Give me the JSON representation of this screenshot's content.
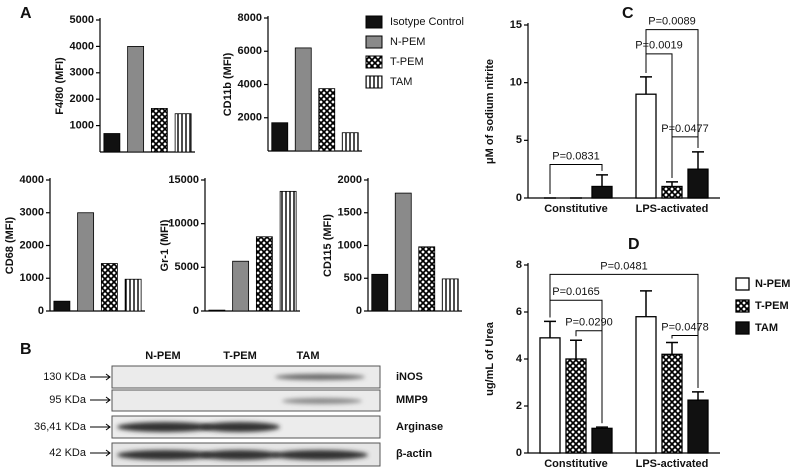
{
  "figure": {
    "blot": {
      "panel": "B",
      "lanes": [
        "N-PEM",
        "T-PEM",
        "TAM"
      ],
      "rows": [
        {
          "size": "130 KDa",
          "protein": "iNOS"
        },
        {
          "size": "95 KDa",
          "protein": "MMP9"
        },
        {
          "size": "36,41 KDa",
          "protein": "Arginase"
        },
        {
          "size": "42 KDa",
          "protein": "β-actin"
        }
      ]
    }
  },
  "chart_data": [
    {
      "type": "bar",
      "panel": "A",
      "ylabel": "F4/80 (MFI)",
      "values": [
        700,
        4000,
        1650,
        1450
      ],
      "ylim": [
        0,
        5000
      ],
      "yticks": [
        1000,
        2000,
        3000,
        4000,
        5000
      ],
      "categories": [
        "Isotype Control",
        "N-PEM",
        "T-PEM",
        "TAM"
      ],
      "fills": [
        "black",
        "gray",
        "crosshatch",
        "stripes"
      ]
    },
    {
      "type": "bar",
      "ylabel": "CD11b (MFI)",
      "values": [
        1700,
        6200,
        3750,
        1100
      ],
      "ylim": [
        0,
        8000
      ],
      "yticks": [
        2000,
        4000,
        6000,
        8000
      ]
    },
    {
      "type": "bar",
      "ylabel": "CD68 (MFI)",
      "values": [
        300,
        3000,
        1450,
        970
      ],
      "ylim": [
        0,
        4000
      ],
      "yticks": [
        0,
        1000,
        2000,
        3000,
        4000
      ]
    },
    {
      "type": "bar",
      "ylabel": "Gr-1 (MFI)",
      "values": [
        100,
        5700,
        8500,
        13700
      ],
      "ylim": [
        0,
        15000
      ],
      "yticks": [
        0,
        5000,
        10000,
        15000
      ]
    },
    {
      "type": "bar",
      "ylabel": "CD115 (MFI)",
      "values": [
        560,
        1800,
        980,
        490
      ],
      "ylim": [
        0,
        2000
      ],
      "yticks": [
        0,
        500,
        1000,
        1500,
        2000
      ]
    },
    {
      "type": "grouped-bar",
      "panel": "C",
      "ylabel": "μM of sodium nitrite",
      "categories": [
        "Constitutive",
        "LPS-activated"
      ],
      "ylim": [
        0,
        15
      ],
      "yticks": [
        0,
        5,
        10,
        15
      ],
      "series": [
        {
          "fill": "white",
          "values": [
            0,
            9.0
          ],
          "errors": [
            0,
            1.5
          ]
        },
        {
          "fill": "crosshatch",
          "values": [
            0,
            1.0
          ],
          "errors": [
            0,
            0.4
          ]
        },
        {
          "fill": "black",
          "values": [
            1.0,
            2.5
          ],
          "errors": [
            1.0,
            1.5
          ]
        }
      ],
      "annotations": [
        "P=0.0831",
        "P=0.0089",
        "P=0.0019",
        "P=0.0477"
      ]
    },
    {
      "type": "grouped-bar",
      "panel": "D",
      "ylabel": "ug/mL of Urea",
      "categories": [
        "Constitutive",
        "LPS-activated"
      ],
      "ylim": [
        0,
        8
      ],
      "yticks": [
        0,
        2,
        4,
        6,
        8
      ],
      "series": [
        {
          "name": "N-PEM",
          "fill": "white",
          "values": [
            4.9,
            5.8
          ],
          "errors": [
            0.7,
            1.1
          ]
        },
        {
          "name": "T-PEM",
          "fill": "crosshatch",
          "values": [
            4.0,
            4.2
          ],
          "errors": [
            0.8,
            0.5
          ]
        },
        {
          "name": "TAM",
          "fill": "black",
          "values": [
            1.05,
            2.25
          ],
          "errors": [
            0.05,
            0.35
          ]
        }
      ],
      "annotations": [
        "P=0.0165",
        "P=0.0290",
        "P=0.0481",
        "P=0.0478"
      ]
    }
  ]
}
